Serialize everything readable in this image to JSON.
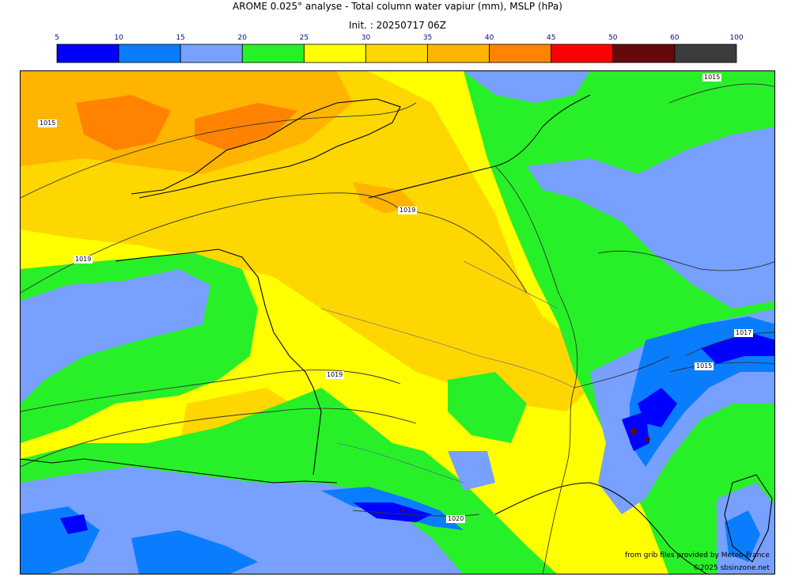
{
  "header": {
    "title": "AROME 0.025° analyse - Total column water vapiur (mm), MSLP (hPa)",
    "init": "Init. : 20250717 06Z"
  },
  "legend": {
    "ticks": [
      "5",
      "10",
      "15",
      "20",
      "25",
      "30",
      "35",
      "40",
      "45",
      "50",
      "60",
      "100"
    ],
    "colors": [
      "#0000ff",
      "#0a7dff",
      "#78a0ff",
      "#28f028",
      "#ffff00",
      "#ffd700",
      "#ffb400",
      "#ff8200",
      "#ff0000",
      "#640a0a",
      "#3c3c3c"
    ]
  },
  "map": {
    "isobar_labels": [
      "1015",
      "1015",
      "1019",
      "1019",
      "1019",
      "1017",
      "1015",
      "1020"
    ],
    "credits": {
      "source": "from grib files provided by Meteo-France",
      "copyright": "©2025 sbsinzone.net"
    }
  }
}
